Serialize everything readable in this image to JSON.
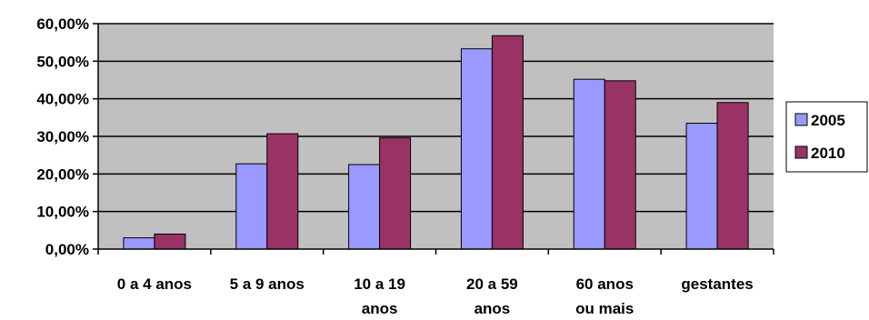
{
  "chart_data": {
    "type": "bar",
    "title": "",
    "xlabel": "",
    "ylabel": "",
    "categories": [
      [
        "0 a 4 anos"
      ],
      [
        "5 a 9 anos"
      ],
      [
        "10 a 19",
        "anos"
      ],
      [
        "20 a 59",
        "anos"
      ],
      [
        "60 anos",
        "ou mais"
      ],
      [
        "gestantes"
      ]
    ],
    "series": [
      {
        "name": "2005",
        "color": "#9999ff",
        "values": [
          3.0,
          22.7,
          22.5,
          53.3,
          45.2,
          33.5
        ]
      },
      {
        "name": "2010",
        "color": "#993366",
        "values": [
          4.0,
          30.7,
          29.6,
          56.8,
          44.8,
          39.0
        ]
      }
    ],
    "ylim": [
      0,
      60
    ],
    "yticks": [
      "0,00%",
      "10,00%",
      "20,00%",
      "30,00%",
      "40,00%",
      "50,00%",
      "60,00%"
    ],
    "grid": true,
    "plot_background": "#c0c0c0",
    "legend_position": "right"
  }
}
